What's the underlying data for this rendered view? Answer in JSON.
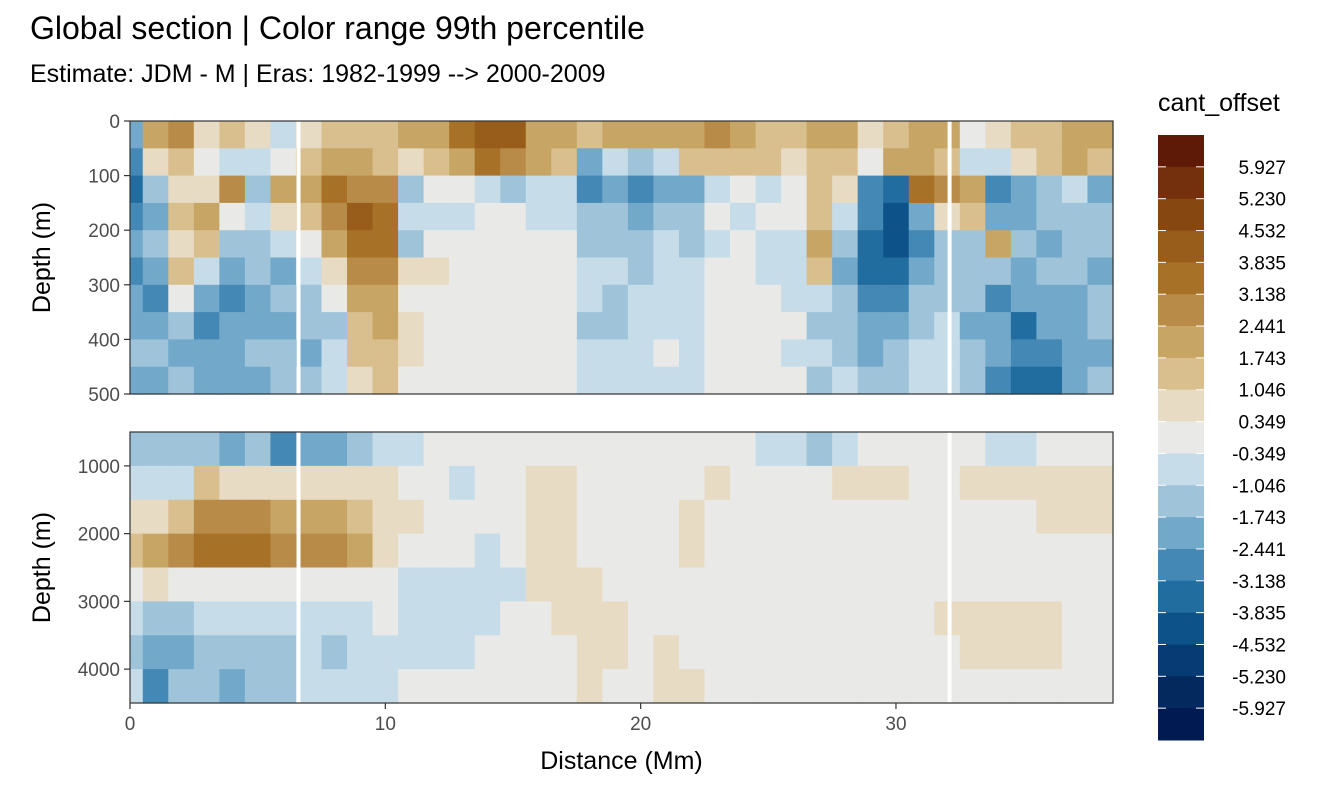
{
  "title": "Global section | Color range 99th percentile",
  "subtitle": "Estimate: JDM - M | Eras: 1982-1999 --> 2000-2009",
  "chart_data": {
    "type": "heatmap",
    "xlabel": "Distance (Mm)",
    "x_ticks": [
      0,
      10,
      20,
      30
    ],
    "xlim": [
      0,
      38.5
    ],
    "panels": [
      {
        "name": "upper",
        "ylabel": "Depth (m)",
        "ylim": [
          0,
          500
        ],
        "y_reversed": true,
        "y_ticks": [
          0,
          100,
          200,
          300,
          400,
          500
        ]
      },
      {
        "name": "lower",
        "ylabel": "Depth (m)",
        "ylim": [
          500,
          4500
        ],
        "y_reversed": true,
        "y_ticks": [
          1000,
          2000,
          3000,
          4000
        ]
      }
    ],
    "gaps_at_distance": [
      6.6,
      32.1
    ],
    "legend": {
      "title": "cant_offset",
      "placement": "right",
      "labels": [
        "5.927",
        "5.230",
        "4.532",
        "3.835",
        "3.138",
        "2.441",
        "1.743",
        "1.046",
        "0.349",
        "-0.349",
        "-1.046",
        "-1.743",
        "-2.441",
        "-3.138",
        "-3.835",
        "-4.532",
        "-5.230",
        "-5.927"
      ],
      "colors": [
        "#5e1a07",
        "#74300d",
        "#874711",
        "#985d1a",
        "#a87128",
        "#b88c48",
        "#c7a564",
        "#d8bf8d",
        "#e8dbc4",
        "#e9eae7",
        "#c6dce9",
        "#9fc4da",
        "#72a8ca",
        "#4488b5",
        "#216d9f",
        "#0d538a",
        "#063b73",
        "#03295f",
        "#021a52"
      ]
    },
    "upper_profiles": [
      {
        "x": 0.0,
        "values": [
          -3,
          -4,
          -5,
          -4,
          -3,
          -4,
          -3,
          -3,
          -2,
          -3
        ]
      },
      {
        "x": 1.0,
        "values": [
          3,
          1,
          -2,
          -3,
          -2,
          -3,
          -4,
          -3,
          -2,
          -3
        ]
      },
      {
        "x": 2.0,
        "values": [
          4,
          2,
          1,
          2,
          1,
          2,
          0,
          -2,
          -3,
          -2
        ]
      },
      {
        "x": 3.0,
        "values": [
          1,
          0,
          1,
          3,
          2,
          -1,
          -3,
          -4,
          -3,
          -3
        ]
      },
      {
        "x": 4.0,
        "values": [
          2,
          -1,
          4,
          0,
          -2,
          -3,
          -4,
          -3,
          -3,
          -3
        ]
      },
      {
        "x": 5.0,
        "values": [
          1,
          -1,
          -2,
          -1,
          -2,
          -2,
          -3,
          -3,
          -2,
          -3
        ]
      },
      {
        "x": 6.0,
        "values": [
          -1,
          0,
          3,
          1,
          -1,
          -3,
          -2,
          -3,
          -2,
          -2
        ]
      },
      {
        "x": 7.0,
        "values": [
          1,
          2,
          3,
          2,
          0,
          -1,
          -2,
          -2,
          -3,
          -2
        ]
      },
      {
        "x": 8.0,
        "values": [
          2,
          3,
          5,
          4,
          3,
          1,
          0,
          -2,
          -1,
          -1
        ]
      },
      {
        "x": 9.0,
        "values": [
          2,
          3,
          4,
          6,
          5,
          4,
          3,
          2,
          2,
          1
        ]
      },
      {
        "x": 10.0,
        "values": [
          2,
          2,
          4,
          5,
          5,
          4,
          3,
          3,
          2,
          2
        ]
      },
      {
        "x": 11.0,
        "values": [
          3,
          1,
          -2,
          -1,
          -2,
          1,
          0,
          1,
          1,
          0
        ]
      },
      {
        "x": 12.0,
        "values": [
          3,
          2,
          0,
          -1,
          0,
          1,
          0,
          0,
          0,
          0
        ]
      },
      {
        "x": 13.0,
        "values": [
          5,
          3,
          0,
          -1,
          0,
          0,
          0,
          0,
          0,
          0
        ]
      },
      {
        "x": 14.0,
        "values": [
          6,
          5,
          -1,
          0,
          0,
          0,
          0,
          0,
          0,
          0
        ]
      },
      {
        "x": 15.0,
        "values": [
          6,
          4,
          -2,
          0,
          0,
          0,
          0,
          0,
          0,
          0
        ]
      },
      {
        "x": 16.0,
        "values": [
          3,
          3,
          -1,
          -1,
          0,
          0,
          0,
          0,
          0,
          0
        ]
      },
      {
        "x": 17.0,
        "values": [
          3,
          2,
          -1,
          -1,
          0,
          0,
          0,
          0,
          0,
          0
        ]
      },
      {
        "x": 18.0,
        "values": [
          2,
          -3,
          -4,
          -2,
          -2,
          -1,
          -1,
          -2,
          -1,
          -1
        ]
      },
      {
        "x": 19.0,
        "values": [
          3,
          -1,
          -3,
          -2,
          -2,
          -1,
          -2,
          -2,
          -1,
          -1
        ]
      },
      {
        "x": 20.0,
        "values": [
          3,
          -2,
          -4,
          -3,
          -2,
          -2,
          -1,
          -1,
          -1,
          -1
        ]
      },
      {
        "x": 21.0,
        "values": [
          3,
          -1,
          -3,
          -2,
          -1,
          -1,
          -1,
          -1,
          0,
          -1
        ]
      },
      {
        "x": 22.0,
        "values": [
          3,
          2,
          -3,
          -2,
          -2,
          -1,
          -1,
          -1,
          -1,
          -1
        ]
      },
      {
        "x": 23.0,
        "values": [
          4,
          2,
          -1,
          0,
          -1,
          0,
          0,
          0,
          0,
          0
        ]
      },
      {
        "x": 24.0,
        "values": [
          3,
          2,
          0,
          -1,
          0,
          0,
          0,
          0,
          0,
          0
        ]
      },
      {
        "x": 25.0,
        "values": [
          2,
          2,
          -1,
          0,
          -1,
          -1,
          0,
          0,
          0,
          0
        ]
      },
      {
        "x": 26.0,
        "values": [
          2,
          1,
          0,
          0,
          -1,
          -1,
          -1,
          0,
          -1,
          0
        ]
      },
      {
        "x": 27.0,
        "values": [
          3,
          2,
          2,
          2,
          3,
          2,
          -1,
          -2,
          -1,
          -2
        ]
      },
      {
        "x": 28.0,
        "values": [
          3,
          2,
          1,
          -1,
          -2,
          -3,
          -2,
          -2,
          -2,
          -1
        ]
      },
      {
        "x": 29.0,
        "values": [
          1,
          0,
          -4,
          -4,
          -5,
          -5,
          -4,
          -3,
          -3,
          -2
        ]
      },
      {
        "x": 30.0,
        "values": [
          2,
          3,
          -5,
          -6,
          -6,
          -5,
          -4,
          -3,
          -2,
          -2
        ]
      },
      {
        "x": 31.0,
        "values": [
          3,
          3,
          5,
          -3,
          -4,
          -3,
          -2,
          -2,
          -1,
          -1
        ]
      },
      {
        "x": 32.0,
        "values": [
          3,
          2,
          4,
          1,
          -2,
          -2,
          -2,
          -1,
          -1,
          -1
        ]
      },
      {
        "x": 33.0,
        "values": [
          0,
          -1,
          3,
          2,
          -2,
          -2,
          -2,
          -3,
          -2,
          -2
        ]
      },
      {
        "x": 34.0,
        "values": [
          1,
          -1,
          -4,
          -3,
          3,
          -2,
          -4,
          -3,
          -3,
          -4
        ]
      },
      {
        "x": 35.0,
        "values": [
          2,
          1,
          -3,
          -3,
          -2,
          -3,
          -3,
          -5,
          -4,
          -5
        ]
      },
      {
        "x": 36.0,
        "values": [
          2,
          2,
          -2,
          -2,
          -3,
          -2,
          -3,
          -3,
          -4,
          -5
        ]
      },
      {
        "x": 37.0,
        "values": [
          3,
          3,
          -1,
          -2,
          -2,
          -2,
          -3,
          -3,
          -3,
          -3
        ]
      },
      {
        "x": 38.0,
        "values": [
          3,
          2,
          -3,
          -2,
          -2,
          -3,
          -2,
          -2,
          -3,
          -2
        ]
      }
    ],
    "lower_profiles": [
      {
        "x": 0.0,
        "values": [
          -2,
          -1,
          1,
          2,
          0,
          -1,
          -2,
          -1
        ]
      },
      {
        "x": 1.0,
        "values": [
          -2,
          -1,
          1,
          3,
          1,
          -2,
          -3,
          -4
        ]
      },
      {
        "x": 2.0,
        "values": [
          -2,
          -1,
          2,
          4,
          0,
          -2,
          -3,
          -2
        ]
      },
      {
        "x": 3.0,
        "values": [
          -2,
          2,
          4,
          5,
          0,
          -1,
          -2,
          -2
        ]
      },
      {
        "x": 4.0,
        "values": [
          -3,
          1,
          4,
          5,
          0,
          -1,
          -2,
          -3
        ]
      },
      {
        "x": 5.0,
        "values": [
          -2,
          1,
          4,
          5,
          0,
          -1,
          -2,
          -2
        ]
      },
      {
        "x": 6.0,
        "values": [
          -4,
          1,
          3,
          4,
          0,
          -1,
          -2,
          -2
        ]
      },
      {
        "x": 7.0,
        "values": [
          -3,
          1,
          3,
          4,
          0,
          -1,
          -1,
          -1
        ]
      },
      {
        "x": 8.0,
        "values": [
          -3,
          1,
          3,
          4,
          0,
          -1,
          -2,
          -1
        ]
      },
      {
        "x": 9.0,
        "values": [
          -2,
          1,
          2,
          3,
          0,
          -1,
          -1,
          -1
        ]
      },
      {
        "x": 10.0,
        "values": [
          -1,
          1,
          1,
          1,
          0,
          0,
          -1,
          -1
        ]
      },
      {
        "x": 11.0,
        "values": [
          -1,
          0,
          1,
          0,
          -1,
          -1,
          -1,
          0
        ]
      },
      {
        "x": 12.0,
        "values": [
          0,
          0,
          0,
          0,
          -1,
          -1,
          -1,
          0
        ]
      },
      {
        "x": 13.0,
        "values": [
          0,
          -1,
          0,
          0,
          -1,
          -1,
          -1,
          0
        ]
      },
      {
        "x": 14.0,
        "values": [
          0,
          0,
          0,
          -1,
          -1,
          -1,
          0,
          0
        ]
      },
      {
        "x": 15.0,
        "values": [
          0,
          0,
          0,
          0,
          -1,
          0,
          0,
          0
        ]
      },
      {
        "x": 16.0,
        "values": [
          0,
          1,
          1,
          1,
          1,
          0,
          0,
          0
        ]
      },
      {
        "x": 17.0,
        "values": [
          0,
          1,
          1,
          1,
          1,
          1,
          0,
          0
        ]
      },
      {
        "x": 18.0,
        "values": [
          0,
          0,
          0,
          0,
          1,
          1,
          1,
          1
        ]
      },
      {
        "x": 19.0,
        "values": [
          0,
          0,
          0,
          0,
          0,
          1,
          1,
          0
        ]
      },
      {
        "x": 20.0,
        "values": [
          0,
          0,
          0,
          0,
          0,
          0,
          0,
          0
        ]
      },
      {
        "x": 21.0,
        "values": [
          0,
          0,
          0,
          0,
          0,
          0,
          1,
          1
        ]
      },
      {
        "x": 22.0,
        "values": [
          0,
          0,
          1,
          1,
          0,
          0,
          0,
          1
        ]
      },
      {
        "x": 23.0,
        "values": [
          0,
          1,
          0,
          0,
          0,
          0,
          0,
          0
        ]
      },
      {
        "x": 24.0,
        "values": [
          0,
          0,
          0,
          0,
          0,
          0,
          0,
          0
        ]
      },
      {
        "x": 25.0,
        "values": [
          -1,
          0,
          0,
          0,
          0,
          0,
          0,
          0
        ]
      },
      {
        "x": 26.0,
        "values": [
          -1,
          0,
          0,
          0,
          0,
          0,
          0,
          0
        ]
      },
      {
        "x": 27.0,
        "values": [
          -2,
          0,
          0,
          0,
          0,
          0,
          0,
          0
        ]
      },
      {
        "x": 28.0,
        "values": [
          -1,
          1,
          0,
          0,
          0,
          0,
          0,
          0
        ]
      },
      {
        "x": 29.0,
        "values": [
          0,
          1,
          0,
          0,
          0,
          0,
          0,
          0
        ]
      },
      {
        "x": 30.0,
        "values": [
          0,
          1,
          0,
          0,
          0,
          0,
          0,
          0
        ]
      },
      {
        "x": 31.0,
        "values": [
          0,
          0,
          0,
          0,
          0,
          0,
          0,
          0
        ]
      },
      {
        "x": 32.0,
        "values": [
          0,
          0,
          0,
          0,
          0,
          1,
          0,
          0
        ]
      },
      {
        "x": 33.0,
        "values": [
          0,
          1,
          0,
          0,
          0,
          1,
          1,
          0
        ]
      },
      {
        "x": 34.0,
        "values": [
          -1,
          1,
          0,
          0,
          0,
          1,
          1,
          0
        ]
      },
      {
        "x": 35.0,
        "values": [
          -1,
          1,
          0,
          0,
          0,
          1,
          1,
          0
        ]
      },
      {
        "x": 36.0,
        "values": [
          0,
          1,
          1,
          0,
          0,
          1,
          1,
          0
        ]
      },
      {
        "x": 37.0,
        "values": [
          0,
          1,
          1,
          0,
          0,
          0,
          0,
          0
        ]
      },
      {
        "x": 38.0,
        "values": [
          0,
          1,
          1,
          0,
          0,
          0,
          0,
          0
        ]
      }
    ]
  }
}
